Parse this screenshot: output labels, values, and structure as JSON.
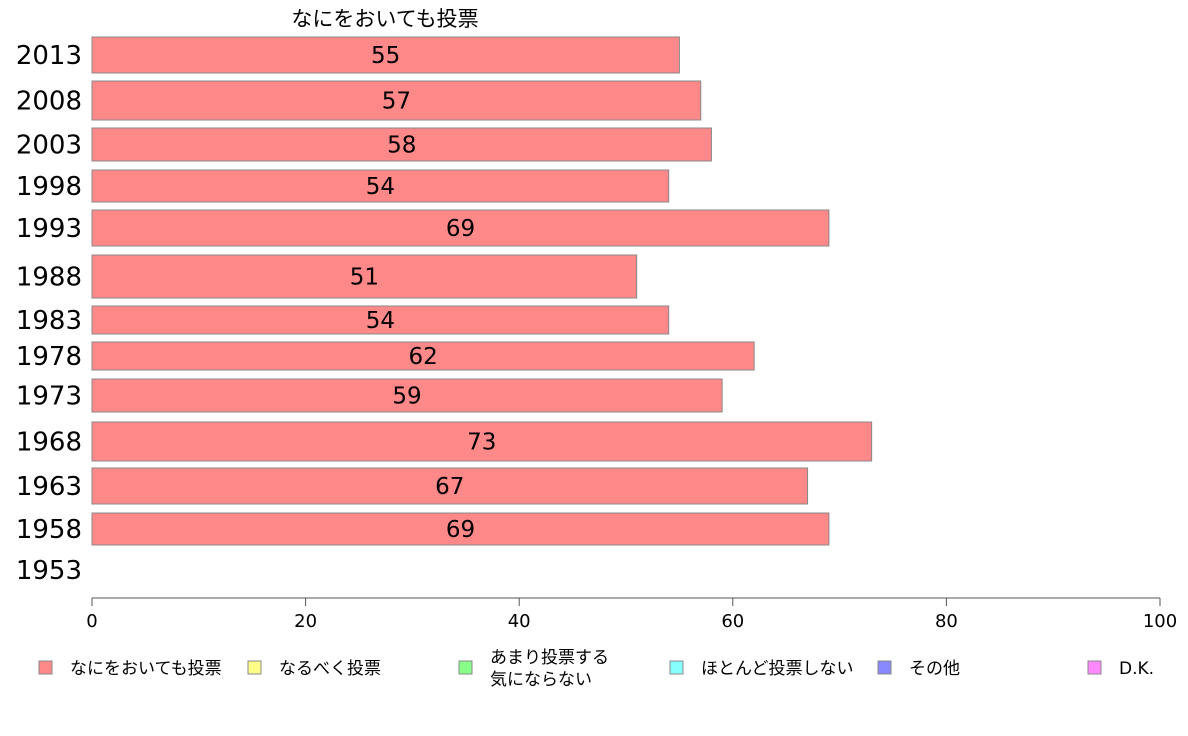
{
  "chart_data": {
    "type": "bar",
    "orientation": "horizontal",
    "title": "なにをおいても投票",
    "categories": [
      "2013",
      "2008",
      "2003",
      "1998",
      "1993",
      "1988",
      "1983",
      "1978",
      "1973",
      "1968",
      "1963",
      "1958",
      "1953"
    ],
    "values": [
      55,
      57,
      58,
      54,
      69,
      51,
      54,
      62,
      59,
      73,
      67,
      69,
      null
    ],
    "xlim": [
      0,
      100
    ],
    "xticks": [
      0,
      20,
      40,
      60,
      80,
      100
    ],
    "grid": false,
    "legend_position": "bottom",
    "bar_color": "#ff8888",
    "legend": [
      {
        "label": "なにをおいても投票",
        "color": "#ff8888"
      },
      {
        "label": "なるべく投票",
        "color": "#ffff88"
      },
      {
        "label": [
          "あまり投票する",
          "気にならない"
        ],
        "color": "#88ff88"
      },
      {
        "label": "ほとんど投票しない",
        "color": "#88ffff"
      },
      {
        "label": "その他",
        "color": "#8888ff"
      },
      {
        "label": "D.K.",
        "color": "#ff88ff"
      }
    ]
  }
}
